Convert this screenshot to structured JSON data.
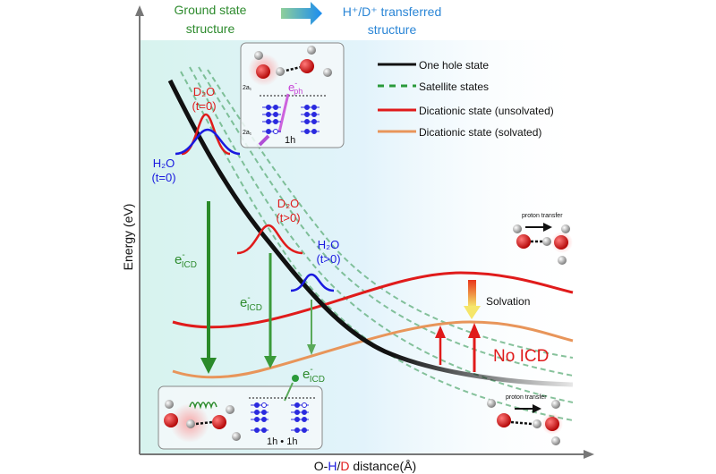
{
  "header": {
    "ground_label_line1": "Ground state",
    "ground_label_line2": "structure",
    "transferred_label_line1": "H⁺/D⁺ transferred",
    "transferred_label_line2": "structure"
  },
  "axes": {
    "y_label": "Energy (eV)",
    "x_label_prefix": "O-",
    "x_label_h": "H",
    "x_label_slash": "/",
    "x_label_d": "D",
    "x_label_suffix": " distance(Å)"
  },
  "legend": [
    {
      "label": "One hole state",
      "color": "#111111",
      "style": "solid"
    },
    {
      "label": "Satellite states",
      "color": "#2a9a3a",
      "style": "dashed"
    },
    {
      "label": "Dicationic state (unsolvated)",
      "color": "#e01b1b",
      "style": "solid"
    },
    {
      "label": "Dicationic state (solvated)",
      "color": "#e8955a",
      "style": "solid"
    }
  ],
  "annotations": {
    "d2o_t0": "D₂O",
    "d2o_t0_time": "(t=0)",
    "h2o_t0": "H₂O",
    "h2o_t0_time": "(t=0)",
    "d2o_t1": "D₂O",
    "d2o_t1_time": "(t>0)",
    "h2o_t1": "H₂O",
    "h2o_t1_time": "(t>0)",
    "e_icd": "e",
    "e_icd_sub": "ICD",
    "e_icd_sup": "-",
    "solvation": "Solvation",
    "no_icd": "No ICD",
    "proton_transfer_top": "proton transfer",
    "proton_transfer_bottom": "proton transfer"
  },
  "top_inset": {
    "level_top": "2a₁",
    "level_bottom": "2a₁",
    "e_ph": "e",
    "e_ph_sub": "ph",
    "e_ph_sup": "-",
    "hole_label": "1h"
  },
  "bottom_inset": {
    "hole_label": "1h • 1h"
  },
  "colors": {
    "green_text": "#2e8b2e",
    "blue_text": "#2b86d6",
    "red": "#e01b1b",
    "orange": "#e8955a",
    "black": "#111111",
    "h2o_blue": "#1a1adf"
  }
}
